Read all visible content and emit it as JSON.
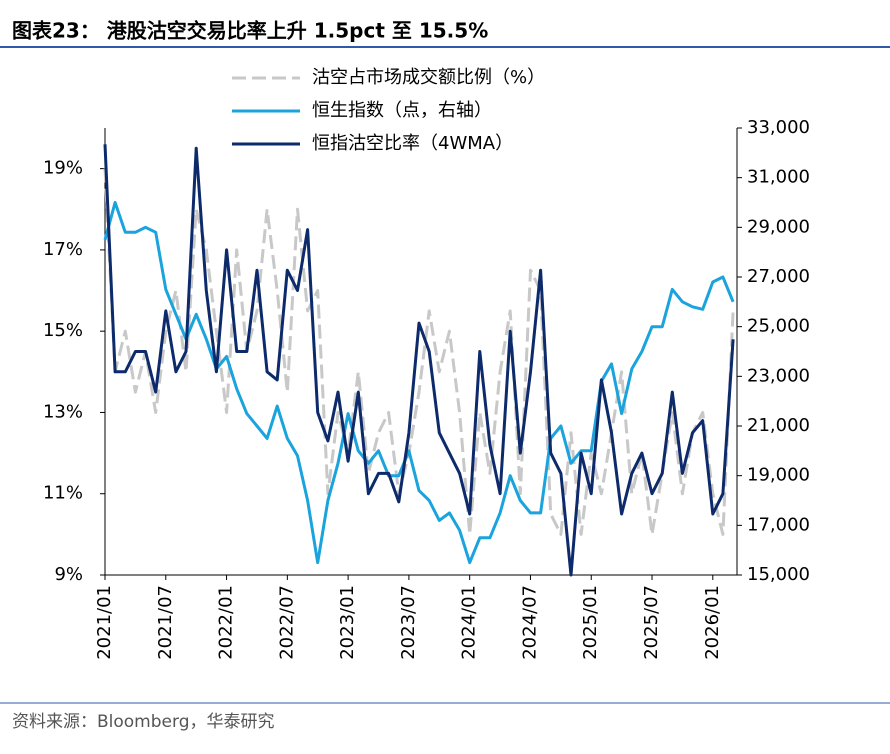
{
  "chart_data": {
    "type": "line",
    "title": "图表23： 港股沽空交易比率上升 1.5pct 至 15.5%",
    "source": "资料来源：Bloomberg，华泰研究",
    "categories": [
      "2021/01",
      null,
      null,
      null,
      null,
      null,
      "2021/07",
      null,
      null,
      null,
      null,
      null,
      "2022/01",
      null,
      null,
      null,
      null,
      null,
      "2022/07",
      null,
      null,
      null,
      null,
      null,
      "2023/01",
      null,
      null,
      null,
      null,
      null,
      "2023/07",
      null,
      null,
      null,
      null,
      null,
      "2024/01",
      null,
      null,
      null,
      null,
      null,
      "2024/07",
      null,
      null,
      null,
      null,
      null,
      "2025/01",
      null,
      null,
      null,
      null,
      null,
      "2025/07",
      null,
      null,
      null,
      null,
      null,
      "2026/01",
      null,
      null
    ],
    "series": [
      {
        "name": "沽空占市场成交额比例（%）",
        "color": "#c8c8c8",
        "dashed": true,
        "values": [
          19,
          14,
          15,
          13.5,
          14.5,
          13,
          15,
          16,
          14,
          18,
          17,
          15,
          13,
          17,
          14.5,
          15.5,
          18,
          16,
          13.5,
          18,
          15.5,
          16,
          11,
          13,
          12,
          14,
          11.5,
          12.5,
          13,
          11,
          12,
          13.5,
          15.5,
          14,
          15,
          13,
          10,
          13,
          11.5,
          14,
          15.5,
          11,
          16.5,
          16,
          10.5,
          10,
          12.5,
          10,
          12,
          11,
          12.5,
          14,
          11,
          12,
          10,
          11.5,
          13,
          11,
          12.5,
          13,
          11,
          10,
          15.5
        ]
      },
      {
        "name": "恒生指数（点，右轴）",
        "color": "#1aa3dc",
        "axis": "y2",
        "values": [
          28500,
          30000,
          28800,
          28800,
          29000,
          28800,
          26500,
          25500,
          24500,
          25500,
          24500,
          23300,
          23800,
          22500,
          21500,
          21000,
          20500,
          21800,
          20500,
          19800,
          18000,
          15500,
          18000,
          19500,
          21500,
          20000,
          19500,
          20000,
          19000,
          19000,
          20000,
          18400,
          18000,
          17200,
          17500,
          16800,
          15500,
          16500,
          16500,
          17500,
          19000,
          18000,
          17500,
          17500,
          20500,
          21000,
          19500,
          20000,
          20000,
          22800,
          23500,
          21500,
          23300,
          24000,
          25000,
          25000,
          26500,
          26000,
          25800,
          25700,
          26800,
          27000,
          26000
        ]
      },
      {
        "name": "恒指沽空比率（4WMA）",
        "color": "#0d2a6b",
        "values": [
          19.6,
          14,
          14,
          14.5,
          14.5,
          13.5,
          15.5,
          14,
          14.5,
          19.5,
          16,
          14,
          17,
          14.5,
          14.5,
          16.5,
          14,
          13.8,
          16.5,
          16,
          17.5,
          13,
          12.3,
          13.5,
          11.8,
          13.5,
          11,
          11.5,
          11.5,
          10.8,
          12.5,
          15.2,
          14.5,
          12.5,
          12,
          11.5,
          10.5,
          14.5,
          12.2,
          11,
          15,
          12,
          14,
          16.5,
          12,
          11.5,
          9,
          12,
          11,
          13.8,
          12.5,
          10.5,
          11.5,
          12,
          11,
          11.5,
          13.5,
          11.5,
          12.5,
          12.8,
          10.5,
          11,
          14.8
        ]
      }
    ],
    "ylim": [
      9,
      20
    ],
    "yticks": [
      {
        "value": 9,
        "label": "9%"
      },
      {
        "value": 11,
        "label": "11%"
      },
      {
        "value": 13,
        "label": "13%"
      },
      {
        "value": 15,
        "label": "15%"
      },
      {
        "value": 17,
        "label": "17%"
      },
      {
        "value": 19,
        "label": "19%"
      }
    ],
    "y2lim": [
      15000,
      33000
    ],
    "y2ticks": [
      {
        "value": 15000,
        "label": "15,000"
      },
      {
        "value": 17000,
        "label": "17,000"
      },
      {
        "value": 19000,
        "label": "19,000"
      },
      {
        "value": 21000,
        "label": "21,000"
      },
      {
        "value": 23000,
        "label": "23,000"
      },
      {
        "value": 25000,
        "label": "25,000"
      },
      {
        "value": 27000,
        "label": "27,000"
      },
      {
        "value": 29000,
        "label": "29,000"
      },
      {
        "value": 31000,
        "label": "31,000"
      },
      {
        "value": 33000,
        "label": "33,000"
      }
    ]
  }
}
